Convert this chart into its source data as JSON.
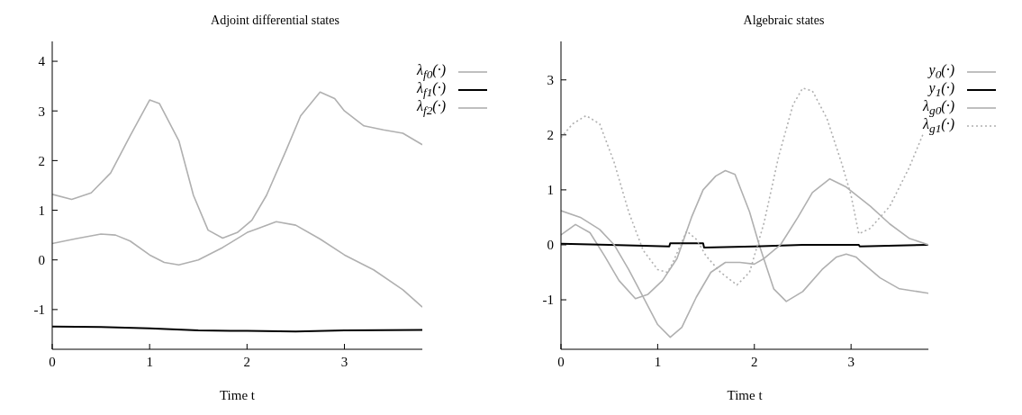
{
  "chart_data": [
    {
      "type": "line",
      "title": "Adjoint differential states",
      "xlabel": "Time t",
      "xlim": [
        0,
        3.8
      ],
      "xticks": [
        0,
        1,
        2,
        3
      ],
      "ylim": [
        -1.8,
        4.4
      ],
      "yticks": [
        -1,
        0,
        1,
        2,
        3,
        4
      ],
      "grid": false,
      "legend": "top right",
      "series": [
        {
          "name": "λ$_{f0}$(·)",
          "color": "#b0b0b0",
          "x": [
            0,
            0.2,
            0.4,
            0.6,
            0.8,
            1.0,
            1.1,
            1.3,
            1.45,
            1.6,
            1.75,
            1.9,
            2.05,
            2.2,
            2.4,
            2.55,
            2.75,
            2.9,
            3.0,
            3.2,
            3.4,
            3.6,
            3.8
          ],
          "values": [
            1.32,
            1.22,
            1.35,
            1.75,
            2.5,
            3.22,
            3.15,
            2.4,
            1.3,
            0.6,
            0.44,
            0.55,
            0.8,
            1.3,
            2.2,
            2.9,
            3.38,
            3.25,
            3.0,
            2.7,
            2.62,
            2.55,
            2.32
          ]
        },
        {
          "name": "λ$_{f1}$(·)",
          "color": "#000000",
          "x": [
            0,
            0.5,
            1.0,
            1.5,
            2.0,
            2.5,
            3.0,
            3.8
          ],
          "values": [
            -1.34,
            -1.35,
            -1.38,
            -1.42,
            -1.43,
            -1.44,
            -1.42,
            -1.41
          ]
        },
        {
          "name": "λ$_{f2}$(·)",
          "color": "#b0b0b0",
          "x": [
            0,
            0.25,
            0.5,
            0.65,
            0.8,
            1.0,
            1.15,
            1.3,
            1.5,
            1.75,
            2.0,
            2.3,
            2.5,
            2.75,
            3.0,
            3.3,
            3.6,
            3.8
          ],
          "values": [
            0.33,
            0.43,
            0.52,
            0.5,
            0.38,
            0.1,
            -0.05,
            -0.1,
            0.0,
            0.25,
            0.55,
            0.77,
            0.7,
            0.42,
            0.1,
            -0.2,
            -0.6,
            -0.95
          ]
        }
      ]
    },
    {
      "type": "line",
      "title": "Algebraic states",
      "xlabel": "Time t",
      "xlim": [
        0,
        3.8
      ],
      "xticks": [
        0,
        1,
        2,
        3
      ],
      "ylim": [
        -1.9,
        3.7
      ],
      "yticks": [
        -1,
        0,
        1,
        2,
        3
      ],
      "grid": false,
      "legend": "top right",
      "series": [
        {
          "name": "y$_{0}$(·)",
          "color": "#b0b0b0",
          "x": [
            0,
            0.15,
            0.3,
            0.45,
            0.6,
            0.77,
            0.9,
            1.05,
            1.2,
            1.35,
            1.47,
            1.6,
            1.7,
            1.8,
            1.95,
            2.05,
            2.2,
            2.33,
            2.5,
            2.7,
            2.85,
            2.95,
            3.05,
            3.1,
            3.3,
            3.5,
            3.8
          ],
          "values": [
            0.18,
            0.37,
            0.22,
            -0.2,
            -0.65,
            -0.98,
            -0.9,
            -0.65,
            -0.25,
            0.5,
            1.0,
            1.25,
            1.35,
            1.28,
            0.6,
            0.0,
            -0.8,
            -1.03,
            -0.85,
            -0.45,
            -0.22,
            -0.17,
            -0.22,
            -0.3,
            -0.6,
            -0.8,
            -0.88
          ]
        },
        {
          "name": "y$_{1}$(·)",
          "color": "#000000",
          "x": [
            0,
            0.5,
            1.12,
            1.13,
            1.47,
            1.48,
            2.0,
            2.5,
            3.08,
            3.09,
            3.8
          ],
          "values": [
            0.02,
            0.0,
            -0.03,
            0.03,
            0.03,
            -0.05,
            -0.03,
            0.0,
            0.0,
            -0.03,
            0.0
          ]
        },
        {
          "name": "λ$_{g0}$(·)",
          "color": "#b0b0b0",
          "x": [
            0,
            0.2,
            0.4,
            0.55,
            0.7,
            0.85,
            1.0,
            1.13,
            1.25,
            1.4,
            1.55,
            1.7,
            1.85,
            2.0,
            2.1,
            2.27,
            2.45,
            2.6,
            2.78,
            2.95,
            3.2,
            3.4,
            3.6,
            3.8
          ],
          "values": [
            0.62,
            0.5,
            0.28,
            0.0,
            -0.45,
            -0.95,
            -1.45,
            -1.68,
            -1.5,
            -0.95,
            -0.5,
            -0.32,
            -0.32,
            -0.35,
            -0.25,
            0.0,
            0.5,
            0.95,
            1.2,
            1.05,
            0.7,
            0.38,
            0.12,
            0.0
          ]
        },
        {
          "name": "λ$_{g1}$(·)",
          "color": "#b0b0b0",
          "line_style": "dotted",
          "x": [
            0,
            0.12,
            0.26,
            0.4,
            0.55,
            0.7,
            0.85,
            1.0,
            1.1,
            1.15,
            1.3,
            1.4,
            1.5,
            1.65,
            1.82,
            1.95,
            2.1,
            2.25,
            2.4,
            2.5,
            2.6,
            2.75,
            2.9,
            3.0,
            3.08,
            3.2,
            3.4,
            3.6,
            3.8
          ],
          "values": [
            1.95,
            2.2,
            2.35,
            2.2,
            1.5,
            0.6,
            -0.1,
            -0.45,
            -0.5,
            -0.35,
            0.25,
            0.1,
            -0.2,
            -0.5,
            -0.73,
            -0.5,
            0.4,
            1.6,
            2.55,
            2.85,
            2.8,
            2.3,
            1.5,
            0.9,
            0.2,
            0.3,
            0.7,
            1.4,
            2.25
          ]
        }
      ]
    }
  ]
}
